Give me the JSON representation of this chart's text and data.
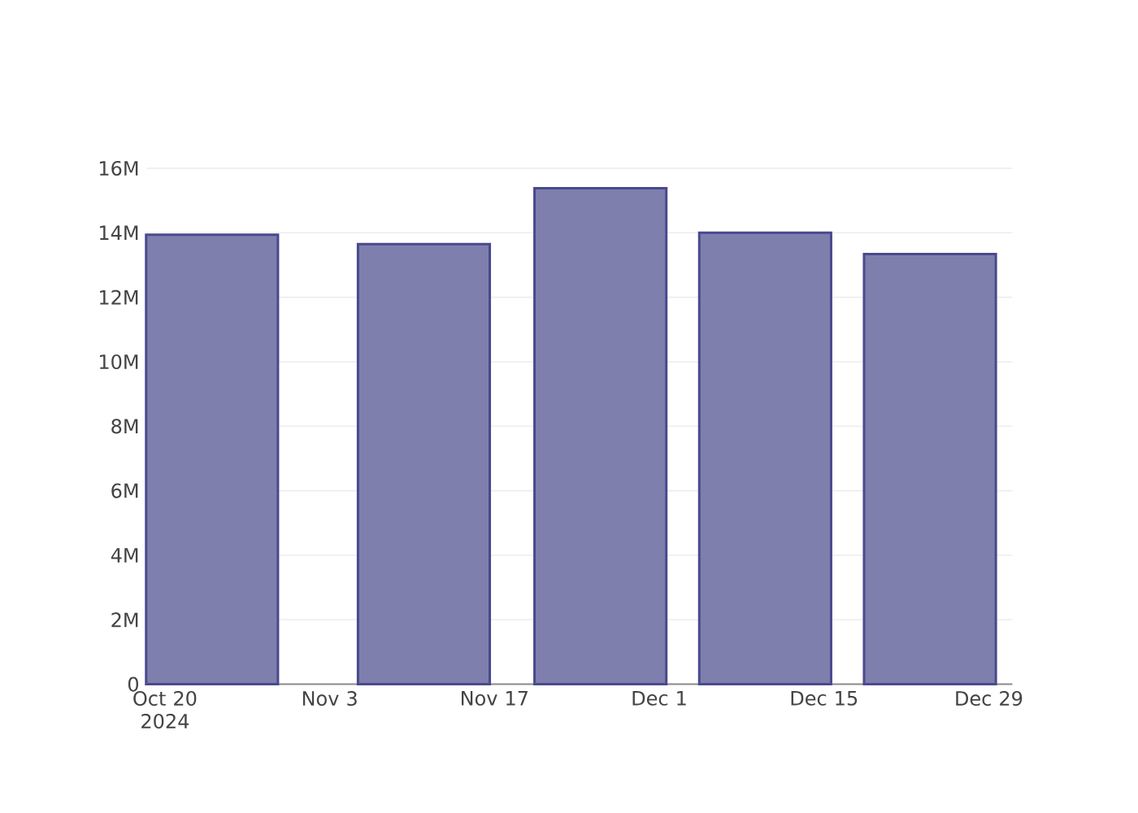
{
  "chart_data": {
    "type": "bar",
    "x": [
      "2024-10-24",
      "2024-11-11",
      "2024-11-26",
      "2024-12-10",
      "2024-12-24"
    ],
    "values": [
      13940000,
      13650000,
      15380000,
      14000000,
      13340000
    ],
    "color": "#7f7fae",
    "xlim": [
      "2024-10-18T10:00",
      "2024-12-31"
    ],
    "xticks": [
      {
        "value": "2024-10-20",
        "label": "Oct 20 2024"
      },
      {
        "value": "2024-11-03",
        "label": "Nov 3"
      },
      {
        "value": "2024-11-17",
        "label": "Nov 17"
      },
      {
        "value": "2024-12-01",
        "label": "Dec 1"
      },
      {
        "value": "2024-12-15",
        "label": "Dec 15"
      },
      {
        "value": "2024-12-29",
        "label": "Dec 29"
      }
    ],
    "ylim": [
      0,
      16000000
    ],
    "yticks": [
      0,
      {
        "value": 2000000,
        "label": "2M"
      },
      {
        "value": 4000000,
        "label": "4M"
      },
      {
        "value": 6000000,
        "label": "6M"
      },
      {
        "value": 8000000,
        "label": "8M"
      },
      {
        "value": 10000000,
        "label": "10M"
      },
      {
        "value": 12000000,
        "label": "12M"
      },
      {
        "value": 14000000,
        "label": "14M"
      },
      {
        "value": 16000000,
        "label": "16M"
      }
    ],
    "grid": "y"
  }
}
